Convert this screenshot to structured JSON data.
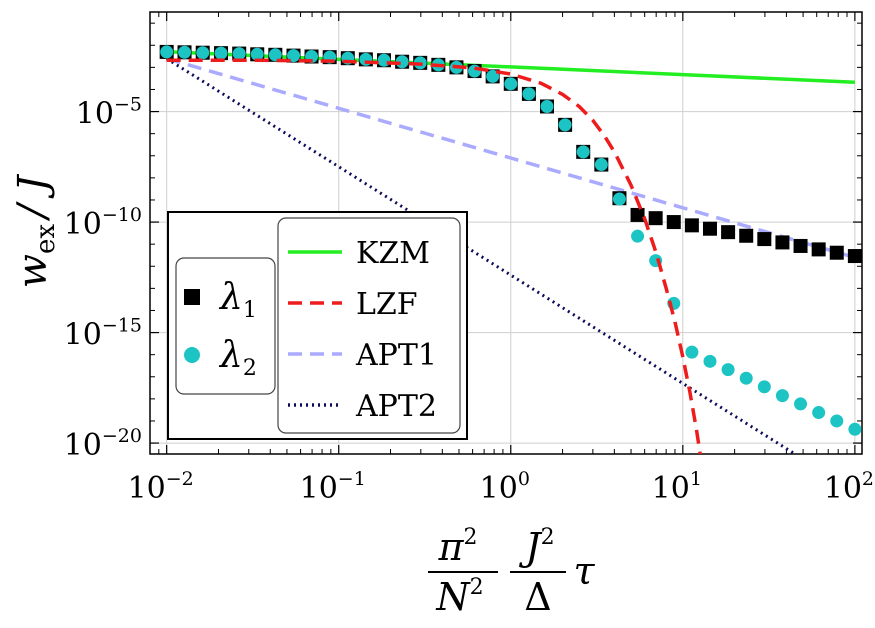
{
  "chart_data": {
    "type": "line",
    "scale": {
      "x": "log",
      "y": "log"
    },
    "xlim": [
      0.008,
      110
    ],
    "ylim": [
      3.2e-21,
      0.32
    ],
    "grid": true,
    "xlabel": "π² J² τ / (N² Δ)",
    "ylabel": "w_ex / J",
    "x_ticks": [
      {
        "value": 0.01,
        "label": "10",
        "exp": "−2"
      },
      {
        "value": 0.1,
        "label": "10",
        "exp": "−1"
      },
      {
        "value": 1,
        "label": "10",
        "exp": "0"
      },
      {
        "value": 10,
        "label": "10",
        "exp": "1"
      },
      {
        "value": 100,
        "label": "10",
        "exp": "2"
      }
    ],
    "y_ticks": [
      {
        "value": 1e-05,
        "label": "10",
        "exp": "−5"
      },
      {
        "value": 1e-10,
        "label": "10",
        "exp": "−10"
      },
      {
        "value": 1e-15,
        "label": "10",
        "exp": "−15"
      },
      {
        "value": 1e-20,
        "label": "10",
        "exp": "−20"
      }
    ],
    "series": [
      {
        "name": "KZM",
        "style": "solid",
        "color": "#22ee22",
        "x": [
          0.01,
          0.1,
          1,
          10,
          100
        ],
        "y": [
          0.0051,
          0.0023,
          0.00105,
          0.00047,
          0.00021
        ]
      },
      {
        "name": "LZF",
        "style": "dashed",
        "color": "#ee1c1c",
        "x": [
          0.01,
          0.03,
          0.1,
          0.3,
          0.6,
          1,
          1.5,
          2,
          2.5,
          3,
          3.5,
          4,
          5,
          6,
          7,
          8,
          9,
          10,
          11,
          12,
          13
        ],
        "y": [
          0.0021,
          0.0021,
          0.0019,
          0.0014,
          0.00095,
          0.0005,
          0.00019,
          6e-05,
          1.7e-05,
          4e-06,
          8e-07,
          1.5e-07,
          4.7e-09,
          1.4e-10,
          4e-12,
          1e-13,
          3e-15,
          8e-17,
          2e-18,
          4e-20,
          7e-22
        ]
      },
      {
        "name": "APT1",
        "style": "dashed",
        "color": "#aaaaff",
        "x": [
          0.01,
          0.1,
          1,
          10,
          100
        ],
        "y": [
          0.0025,
          1.4e-05,
          7.9e-08,
          4.4e-10,
          2.5e-12
        ]
      },
      {
        "name": "APT2",
        "style": "dotted",
        "color": "#0b0b5a",
        "x": [
          0.01,
          0.1,
          1,
          10,
          100
        ],
        "y": [
          0.0025,
          3.2e-08,
          4e-13,
          5e-18,
          6.3e-23
        ]
      },
      {
        "name": "λ₁",
        "style": "markers",
        "marker": "square",
        "color": "#000000",
        "x": [
          0.01,
          0.0127,
          0.0162,
          0.0207,
          0.0264,
          0.0336,
          0.0428,
          0.0546,
          0.0695,
          0.0886,
          0.1129,
          0.1438,
          0.1833,
          0.2336,
          0.2976,
          0.3793,
          0.4833,
          0.6158,
          0.7848,
          1.0,
          1.2743,
          1.6238,
          2.0691,
          2.6367,
          3.3598,
          4.2813,
          5.4556,
          6.9519,
          8.8587,
          11.288,
          14.384,
          18.33,
          23.357,
          29.764,
          37.927,
          48.329,
          61.585,
          78.476,
          100.0
        ],
        "y": [
          0.005,
          0.0048,
          0.0046,
          0.0044,
          0.0042,
          0.0039,
          0.0037,
          0.0034,
          0.0031,
          0.0029,
          0.0026,
          0.0023,
          0.0021,
          0.0018,
          0.0016,
          0.0013,
          0.001,
          0.00068,
          0.00039,
          0.00018,
          6.3e-05,
          1.7e-05,
          2.5e-06,
          1.5e-07,
          4e-08,
          1.2e-09,
          2.1e-10,
          1.5e-10,
          1e-10,
          7.1e-11,
          5e-11,
          3.5e-11,
          2.4e-11,
          1.7e-11,
          1.2e-11,
          8.3e-12,
          5.8e-12,
          4.1e-12,
          2.9e-12
        ]
      },
      {
        "name": "λ₂",
        "style": "markers",
        "marker": "circle",
        "color": "#1cc4c4",
        "x": [
          0.01,
          0.0127,
          0.0162,
          0.0207,
          0.0264,
          0.0336,
          0.0428,
          0.0546,
          0.0695,
          0.0886,
          0.1129,
          0.1438,
          0.1833,
          0.2336,
          0.2976,
          0.3793,
          0.4833,
          0.6158,
          0.7848,
          1.0,
          1.2743,
          1.6238,
          2.0691,
          2.6367,
          3.3598,
          4.2813,
          5.4556,
          6.9519,
          8.8587,
          11.288,
          14.384,
          18.33,
          23.357,
          29.764,
          37.927,
          48.329,
          61.585,
          78.476,
          100.0
        ],
        "y": [
          0.005,
          0.0048,
          0.0046,
          0.0044,
          0.0042,
          0.0039,
          0.0037,
          0.0034,
          0.0031,
          0.0029,
          0.0026,
          0.0023,
          0.0021,
          0.0018,
          0.0016,
          0.0013,
          0.001,
          0.00068,
          0.00039,
          0.00018,
          6.3e-05,
          1.7e-05,
          2.5e-06,
          1.5e-07,
          4e-08,
          1.1e-09,
          2.3e-11,
          1.8e-12,
          2.1e-14,
          1.3e-16,
          5e-17,
          2.1e-17,
          8.6e-18,
          3.5e-18,
          1.4e-18,
          5.9e-19,
          2.4e-19,
          1e-19,
          4.2e-20
        ]
      }
    ],
    "legend": {
      "placement": "bottom-left",
      "markers": [
        {
          "symbol": "λ",
          "sub": "1",
          "marker": "square",
          "color": "#000000"
        },
        {
          "symbol": "λ",
          "sub": "2",
          "marker": "circle",
          "color": "#1cc4c4"
        }
      ],
      "lines": [
        {
          "label": "KZM",
          "style": "solid",
          "color": "#22ee22"
        },
        {
          "label": "LZF",
          "style": "dashed",
          "color": "#ee1c1c"
        },
        {
          "label": "APT1",
          "style": "dashed",
          "color": "#aaaaff"
        },
        {
          "label": "APT2",
          "style": "dotted",
          "color": "#0b0b5a"
        }
      ]
    },
    "axis_labels": {
      "y": {
        "main": "w",
        "sub": "ex",
        "tail": "/ J"
      },
      "x": {
        "num1": "π",
        "num1_exp": "2",
        "den1": "N",
        "den1_exp": "2",
        "num2": "J",
        "num2_exp": "2",
        "den2": "Δ",
        "tail": "τ"
      }
    }
  }
}
